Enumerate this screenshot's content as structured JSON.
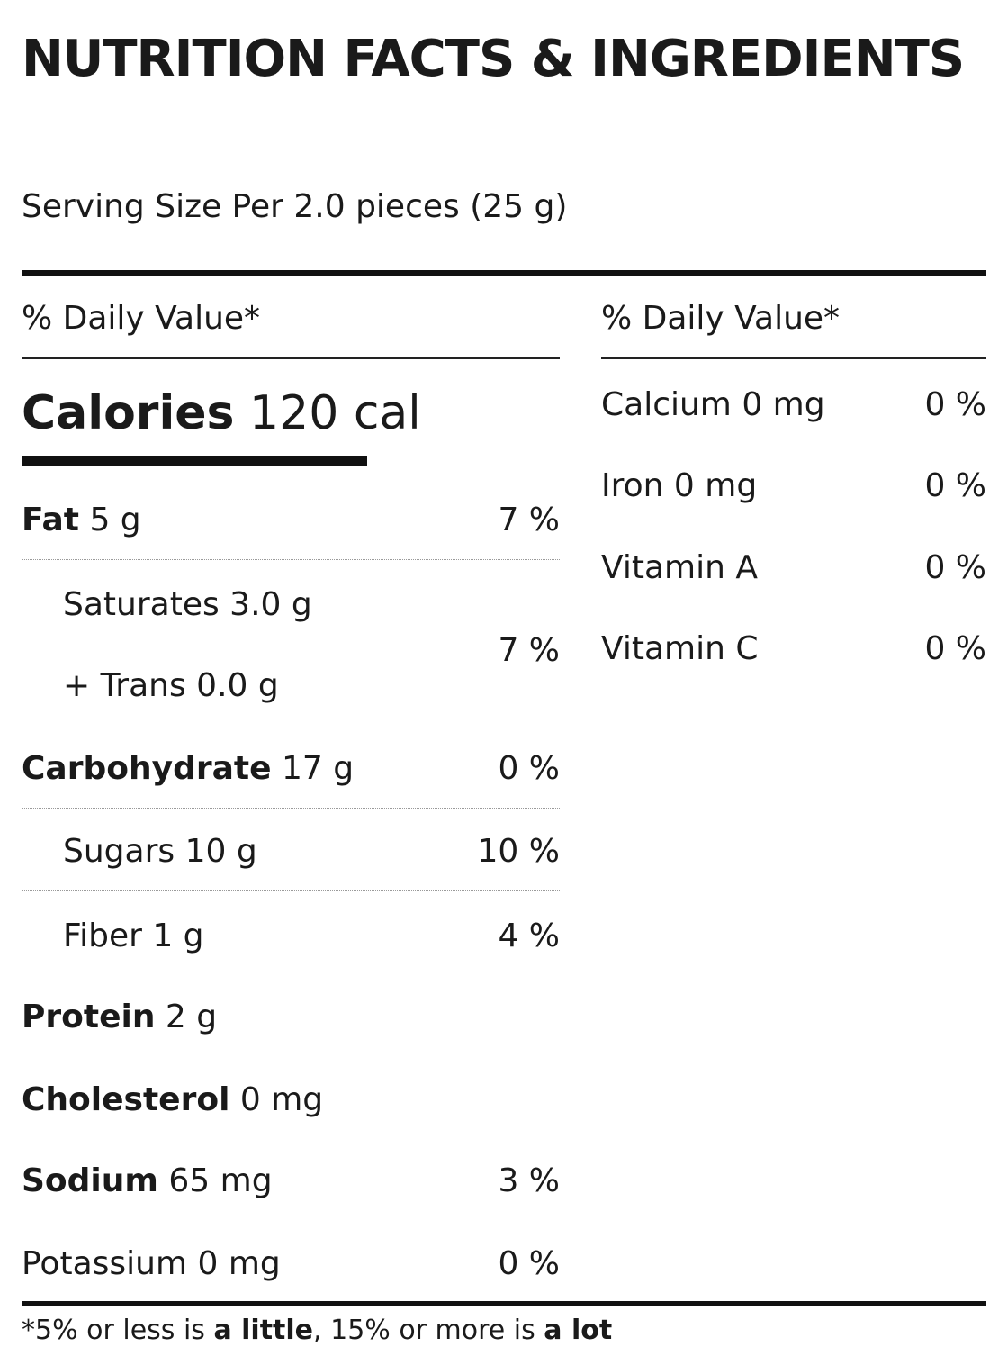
{
  "title": "NUTRITION FACTS & INGREDIENTS",
  "serving_size": "Serving Size Per 2.0 pieces (25 g)",
  "daily_value_header_left": "% Daily Value*",
  "daily_value_header_right": "% Daily Value*",
  "calories": {
    "label": "Calories",
    "value": "120 cal"
  },
  "nutrients": [
    {
      "label": "Fat",
      "amount": "5 g",
      "percent": "7 %"
    },
    {
      "label": "Saturates 3.0 g",
      "amount": "",
      "percent": "7 %"
    },
    {
      "label": "+ Trans 0.0 g",
      "amount": "",
      "percent": ""
    },
    {
      "label": "Carbohydrate",
      "amount": "17 g",
      "percent": "0 %"
    },
    {
      "label": "Sugars 10 g",
      "amount": "",
      "percent": "10 %"
    },
    {
      "label": "Fiber 1 g",
      "amount": "",
      "percent": "4 %"
    },
    {
      "label": "Protein",
      "amount": "2 g",
      "percent": ""
    },
    {
      "label": "Cholesterol",
      "amount": "0 mg",
      "percent": ""
    },
    {
      "label": "Sodium",
      "amount": "65 mg",
      "percent": "3 %"
    },
    {
      "label": "Potassium 0 mg",
      "amount": "",
      "percent": "0 %"
    }
  ],
  "vitamins": [
    {
      "label": "Calcium 0 mg",
      "percent": "0 %"
    },
    {
      "label": "Iron 0 mg",
      "percent": "0 %"
    },
    {
      "label": "Vitamin A",
      "percent": "0 %"
    },
    {
      "label": "Vitamin C",
      "percent": "0 %"
    }
  ],
  "footnote": {
    "part1": "*5% or less is ",
    "part2": "a little",
    "part3": ", 15% or more is ",
    "part4": "a lot"
  }
}
